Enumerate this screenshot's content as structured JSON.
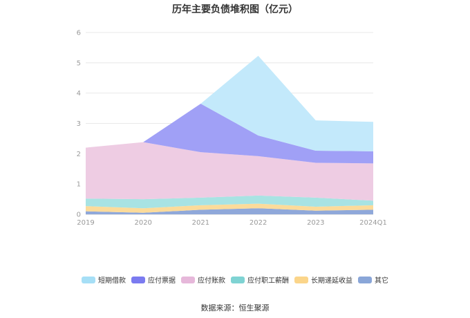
{
  "chart_data": {
    "type": "area",
    "stacked": true,
    "title": "历年主要负债堆积图（亿元）",
    "categories": [
      "2019",
      "2020",
      "2021",
      "2022",
      "2023",
      "2024Q1"
    ],
    "ylim": [
      0,
      6
    ],
    "yticks": [
      "0",
      "1",
      "2",
      "3",
      "4",
      "5",
      "6"
    ],
    "grid": true,
    "legend_position": "bottom",
    "series": [
      {
        "name": "其它",
        "color": "#8fa8da",
        "values": [
          0.1,
          0.05,
          0.15,
          0.2,
          0.12,
          0.15
        ]
      },
      {
        "name": "长期递延收益",
        "color": "#fcdb9a",
        "values": [
          0.17,
          0.15,
          0.15,
          0.15,
          0.13,
          0.15
        ]
      },
      {
        "name": "应付职工薪酬",
        "color": "#a8e3e3",
        "values": [
          0.25,
          0.3,
          0.25,
          0.27,
          0.3,
          0.15
        ]
      },
      {
        "name": "应付账款",
        "color": "#eecce3",
        "values": [
          1.68,
          1.88,
          1.5,
          1.3,
          1.15,
          1.23
        ]
      },
      {
        "name": "应付票据",
        "color": "#a0a0f6",
        "values": [
          0.0,
          0.0,
          1.6,
          0.68,
          0.4,
          0.4
        ]
      },
      {
        "name": "短期借款",
        "color": "#c3e9fb",
        "values": [
          0.0,
          0.0,
          0.0,
          2.63,
          1.0,
          0.97
        ]
      }
    ]
  },
  "legend": [
    {
      "label": "短期借款",
      "color": "#a6dff6"
    },
    {
      "label": "应付票据",
      "color": "#7b7bf0"
    },
    {
      "label": "应付账款",
      "color": "#e6b8da"
    },
    {
      "label": "应付职工薪酬",
      "color": "#7fd3d3"
    },
    {
      "label": "长期递延收益",
      "color": "#fbd58a"
    },
    {
      "label": "其它",
      "color": "#8aa6d8"
    }
  ],
  "source": "数据来源：恒生聚源"
}
